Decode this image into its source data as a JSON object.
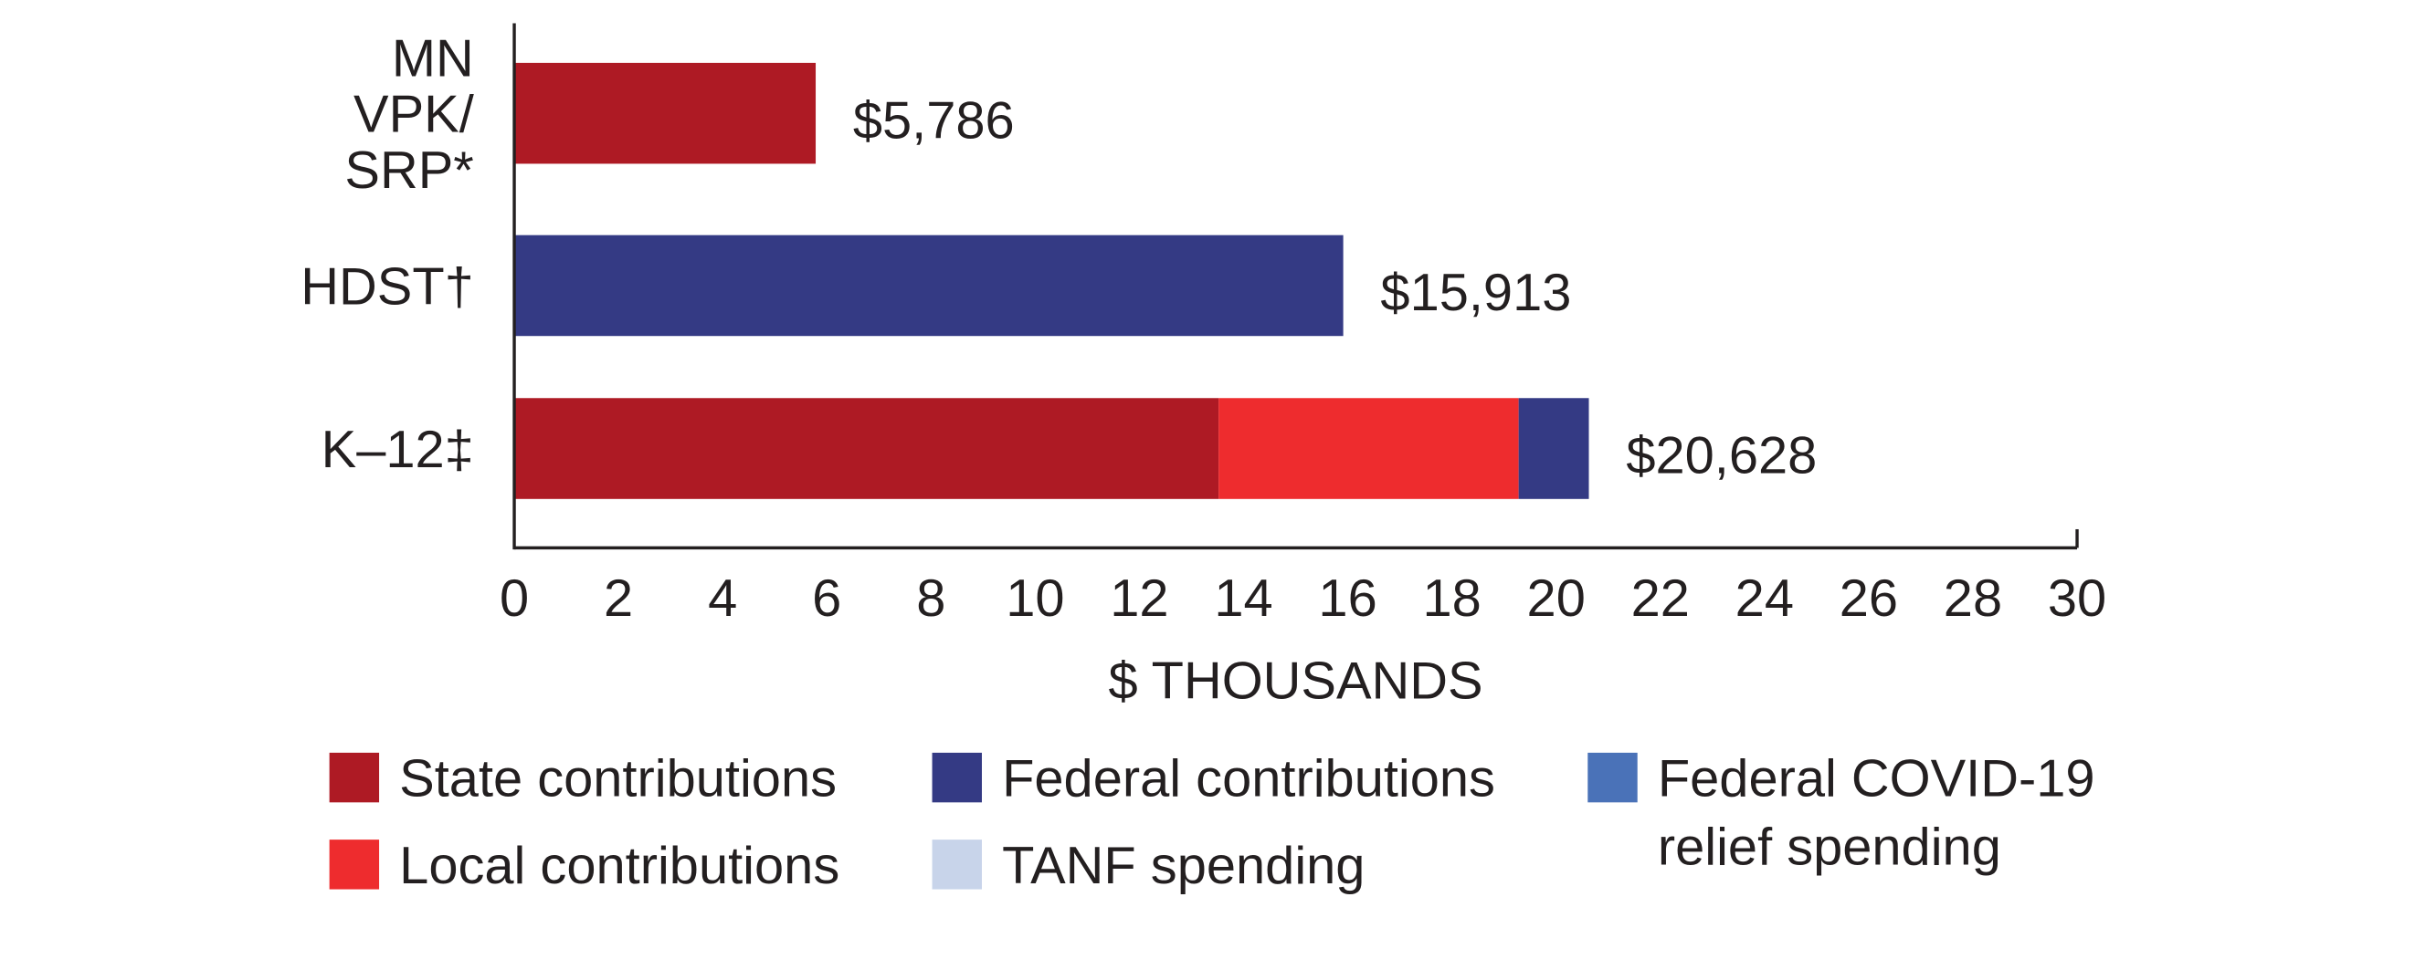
{
  "chart_data": {
    "type": "stacked-barh",
    "categories": [
      "MN\nVPK/\nSRP*",
      "HDST†",
      "K–12‡"
    ],
    "series": [
      {
        "name": "State contributions",
        "color": "#ae1a24",
        "values": [
          5.786,
          null,
          13.52
        ]
      },
      {
        "name": "Local contributions",
        "color": "#ee2c2e",
        "values": [
          null,
          null,
          5.76
        ]
      },
      {
        "name": "Federal contributions",
        "color": "#343a84",
        "values": [
          null,
          15.913,
          1.348
        ]
      },
      {
        "name": "Federal COVID-19\nrelief spending",
        "color": "#4a72b8",
        "values": [
          null,
          null,
          null
        ]
      },
      {
        "name": "TANF spending",
        "color": "#c8d4ea",
        "values": [
          null,
          null,
          null
        ]
      }
    ],
    "totals": [
      5.786,
      15.913,
      20.628
    ],
    "total_labels": [
      "$5,786",
      "$15,913",
      "$20,628"
    ],
    "xlabel": "$ THOUSANDS",
    "xlim": [
      0,
      30
    ],
    "xticks": [
      0,
      2,
      4,
      6,
      8,
      10,
      12,
      14,
      16,
      18,
      20,
      22,
      24,
      26,
      28,
      30
    ]
  }
}
